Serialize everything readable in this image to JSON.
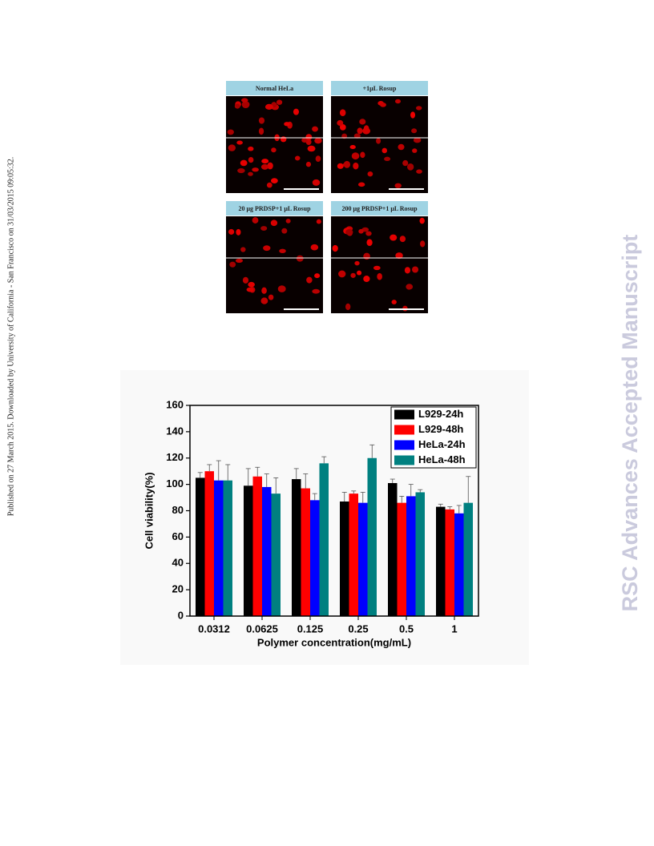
{
  "side_note": "Published on 27 March 2015. Downloaded by University of California - San Francisco on 31/03/2015 09:05:32.",
  "watermark": "RSC Advances Accepted Manuscript",
  "figure_panels": [
    "Normal HeLa",
    "+1μL Rosup",
    "20 μg PRDSP+1 μL Rosup",
    "200 μg PRDSP+1 μL Rosup"
  ],
  "chart_data": {
    "type": "bar",
    "x_label": "Polymer concentration(mg/mL)",
    "y_label": "Cell viability(%)",
    "categories": [
      "0.0312",
      "0.0625",
      "0.125",
      "0.25",
      "0.5",
      "1"
    ],
    "series": [
      {
        "name": "L929-24h",
        "color": "#000000",
        "values": [
          105,
          99,
          104,
          87,
          101,
          83
        ],
        "errors": [
          4,
          13,
          8,
          7,
          3,
          2
        ]
      },
      {
        "name": "L929-48h",
        "color": "#ff0000",
        "values": [
          110,
          106,
          97,
          93,
          86,
          81
        ],
        "errors": [
          5,
          7,
          11,
          2,
          5,
          2
        ]
      },
      {
        "name": "HeLa-24h",
        "color": "#0000ff",
        "values": [
          103,
          98,
          88,
          86,
          91,
          78
        ],
        "errors": [
          15,
          10,
          5,
          8,
          9,
          6
        ]
      },
      {
        "name": "HeLa-48h",
        "color": "#008080",
        "values": [
          103,
          93,
          116,
          120,
          94,
          86
        ],
        "errors": [
          12,
          12,
          5,
          10,
          2,
          20
        ]
      }
    ],
    "ylim": [
      0,
      160
    ],
    "yticks": [
      0,
      20,
      40,
      60,
      80,
      100,
      120,
      140,
      160
    ],
    "legend": "upper right"
  }
}
